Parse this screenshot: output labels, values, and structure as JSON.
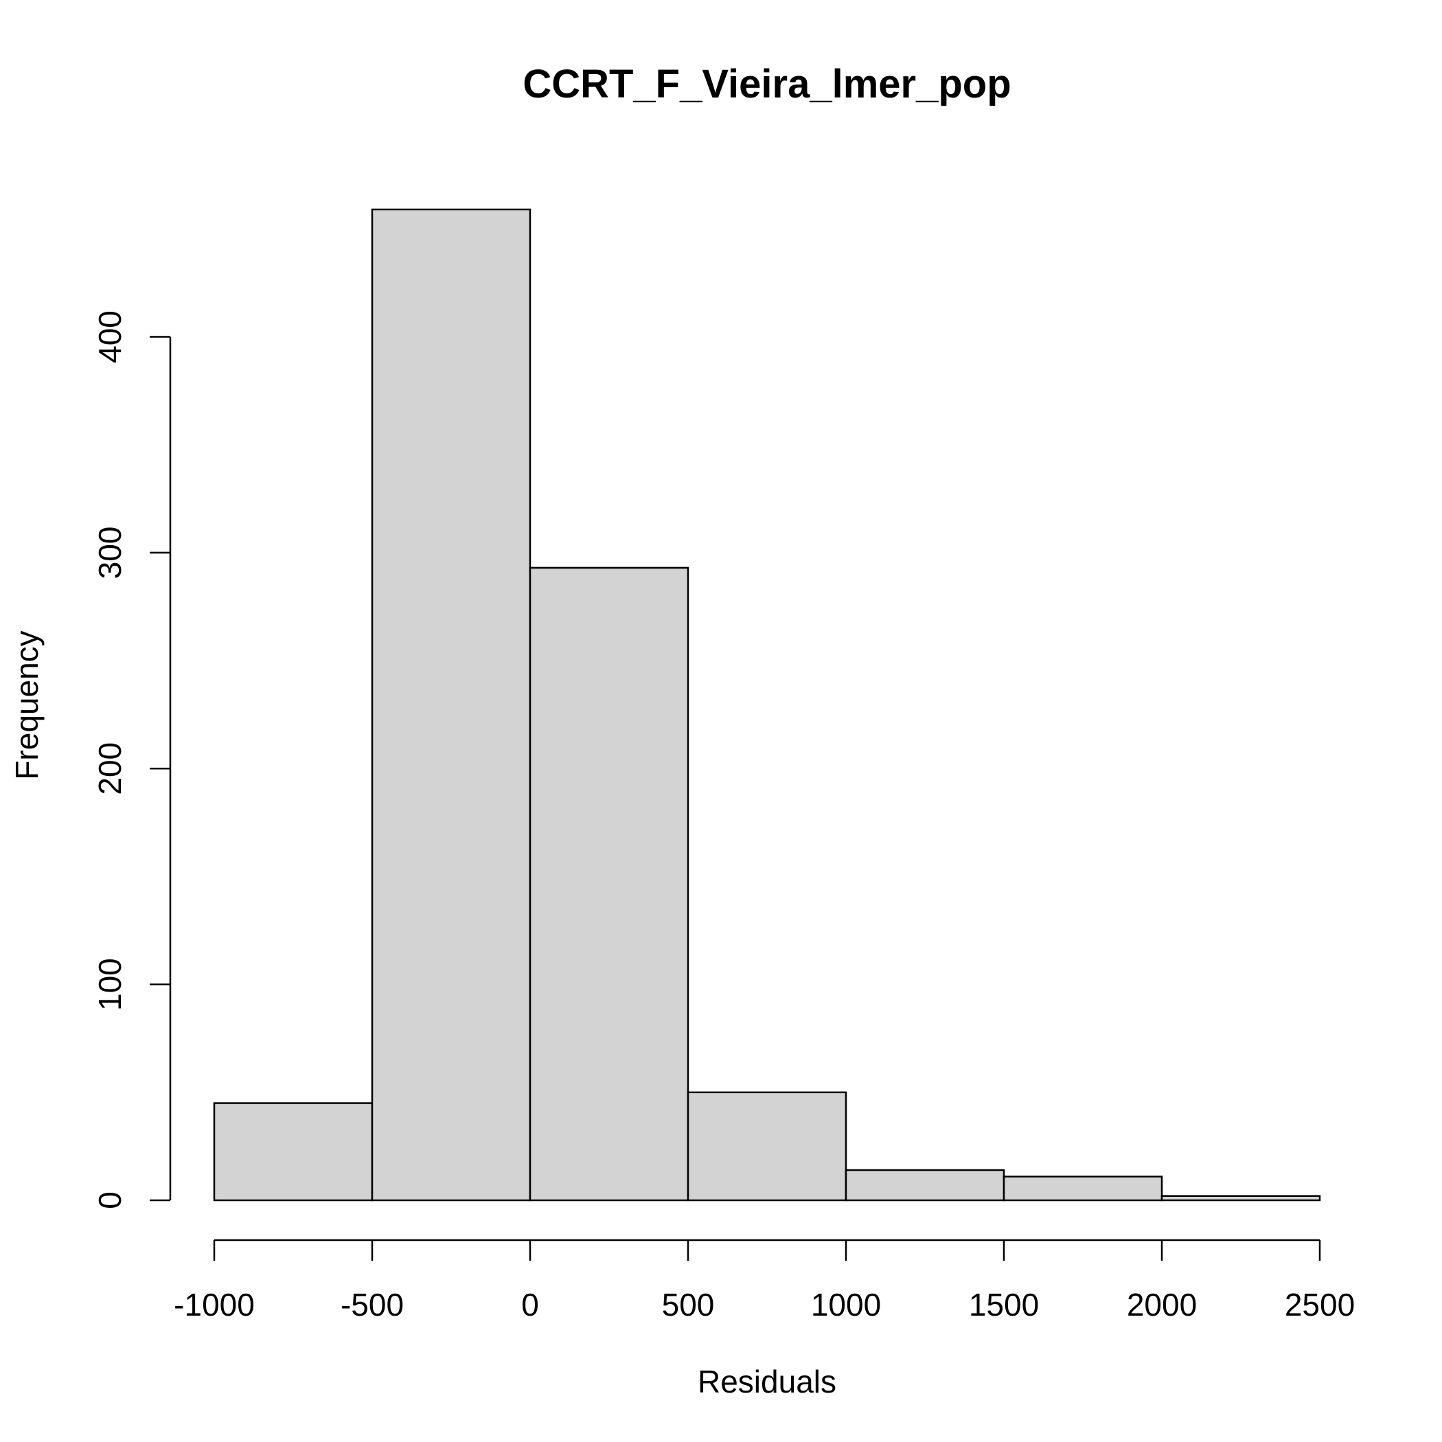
{
  "chart_data": {
    "type": "bar",
    "subtype": "histogram",
    "title": "CCRT_F_Vieira_lmer_pop",
    "xlabel": "Residuals",
    "ylabel": "Frequency",
    "bins": [
      {
        "from": -1000,
        "to": -500,
        "count": 45
      },
      {
        "from": -500,
        "to": 0,
        "count": 459
      },
      {
        "from": 0,
        "to": 500,
        "count": 293
      },
      {
        "from": 500,
        "to": 1000,
        "count": 50
      },
      {
        "from": 1000,
        "to": 1500,
        "count": 14
      },
      {
        "from": 1500,
        "to": 2000,
        "count": 11
      },
      {
        "from": 2000,
        "to": 2500,
        "count": 2
      }
    ],
    "x_ticks": [
      -1000,
      -500,
      0,
      500,
      1000,
      1500,
      2000,
      2500
    ],
    "y_ticks": [
      0,
      100,
      200,
      300,
      400
    ],
    "xlim": [
      -1000,
      2500
    ],
    "ylim": [
      0,
      459
    ],
    "grid": false,
    "legend": "none",
    "bar_color": "#d3d3d3",
    "edge_color": "#000000"
  }
}
